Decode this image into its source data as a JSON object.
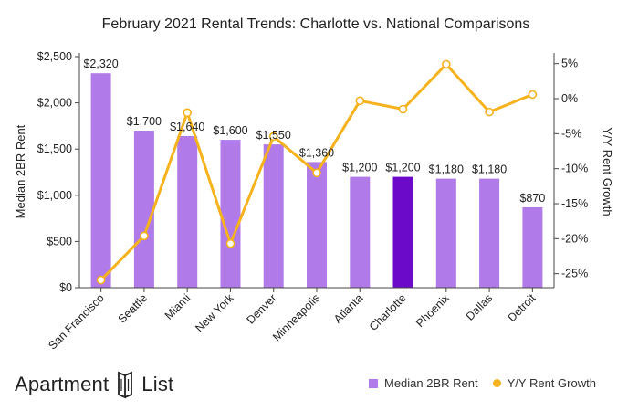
{
  "chart_data": {
    "type": "bar",
    "title": "February 2021 Rental Trends: Charlotte vs. National Comparisons",
    "categories": [
      "San Francisco",
      "Seattle",
      "Miami",
      "New York",
      "Denver",
      "Minneapolis",
      "Atlanta",
      "Charlotte",
      "Phoenix",
      "Dallas",
      "Detroit"
    ],
    "series": [
      {
        "name": "Median 2BR Rent",
        "type": "bar",
        "axis": "left",
        "values": [
          2320,
          1700,
          1640,
          1600,
          1550,
          1360,
          1200,
          1200,
          1180,
          1180,
          870
        ],
        "labels": [
          "$2,320",
          "$1,700",
          "$1,640",
          "$1,600",
          "$1,550",
          "$1,360",
          "$1,200",
          "$1,200",
          "$1,180",
          "$1,180",
          "$870"
        ],
        "color": "#b07ae8",
        "highlight_color": "#6b0ac9",
        "highlight_index": 7
      },
      {
        "name": "Y/Y Rent Growth",
        "type": "line",
        "axis": "right",
        "values": [
          -25.9,
          -19.6,
          -2.0,
          -20.7,
          -5.4,
          -10.6,
          -0.3,
          -1.5,
          4.9,
          -1.9,
          0.6
        ],
        "color": "#f6b21c"
      }
    ],
    "y_left": {
      "label": "Median 2BR Rent",
      "lim": [
        0,
        2500
      ],
      "ticks": [
        0,
        500,
        1000,
        1500,
        2000,
        2500
      ],
      "tick_labels": [
        "$0",
        "$500",
        "$1,000",
        "$1,500",
        "$2,000",
        "$2,500"
      ]
    },
    "y_right": {
      "label": "Y/Y Rent Growth",
      "lim": [
        -27,
        6
      ],
      "ticks": [
        -25,
        -20,
        -15,
        -10,
        -5,
        0,
        5
      ],
      "tick_labels": [
        "-25%",
        "-20%",
        "-15%",
        "-10%",
        "-5%",
        "0%",
        "5%"
      ]
    },
    "grid": false,
    "legend": "bottom-right"
  },
  "brand": {
    "left": "Apartment",
    "right": "List"
  },
  "colors": {
    "bar": "#b07ae8",
    "highlight": "#6b0ac9",
    "line": "#f6b21c",
    "axis": "#444444",
    "text": "#222222"
  }
}
